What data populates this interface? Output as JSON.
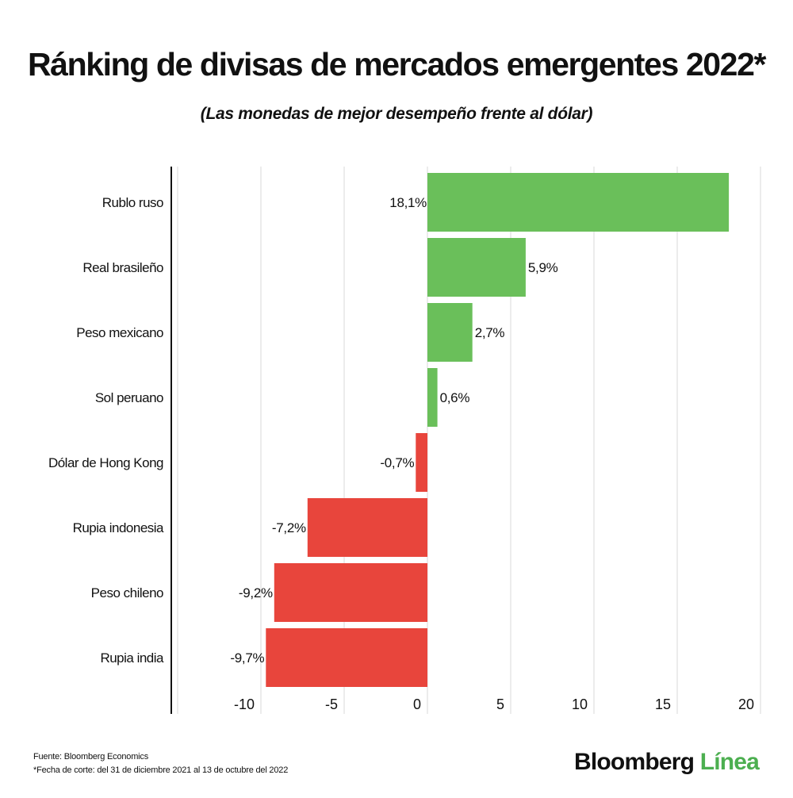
{
  "header": {
    "title": "Ránking de divisas de mercados emergentes 2022*",
    "subtitle": "(Las monedas de mejor desempeño frente al dólar)"
  },
  "chart_data": {
    "type": "bar",
    "orientation": "horizontal",
    "categories": [
      "Rublo ruso",
      "Real brasileño",
      "Peso mexicano",
      "Sol peruano",
      "Dólar de Hong Kong",
      "Rupia indonesia",
      "Peso chileno",
      "Rupia india"
    ],
    "values": [
      18.1,
      5.9,
      2.7,
      0.6,
      -0.7,
      -7.2,
      -9.2,
      -9.7
    ],
    "value_labels": [
      "18,1%",
      "5,9%",
      "2,7%",
      "0,6%",
      "-0,7%",
      "-7,2%",
      "-9,2%",
      "-9,7%"
    ],
    "xlim": [
      -15.5,
      20
    ],
    "xticks": [
      -10,
      -5,
      0,
      5,
      10,
      15,
      20
    ],
    "xtick_labels": [
      "-10",
      "-5",
      "0",
      "5",
      "10",
      "15",
      "20"
    ],
    "grid": "vertical",
    "positive_color": "#6abf5a",
    "negative_color": "#e8453c"
  },
  "footer": {
    "source": "Fuente: Bloomberg Economics",
    "note": "*Fecha de corte: del 31 de diciembre 2021 al 13 de octubre del 2022",
    "brand_main": "Bloomberg",
    "brand_accent": "Línea"
  }
}
